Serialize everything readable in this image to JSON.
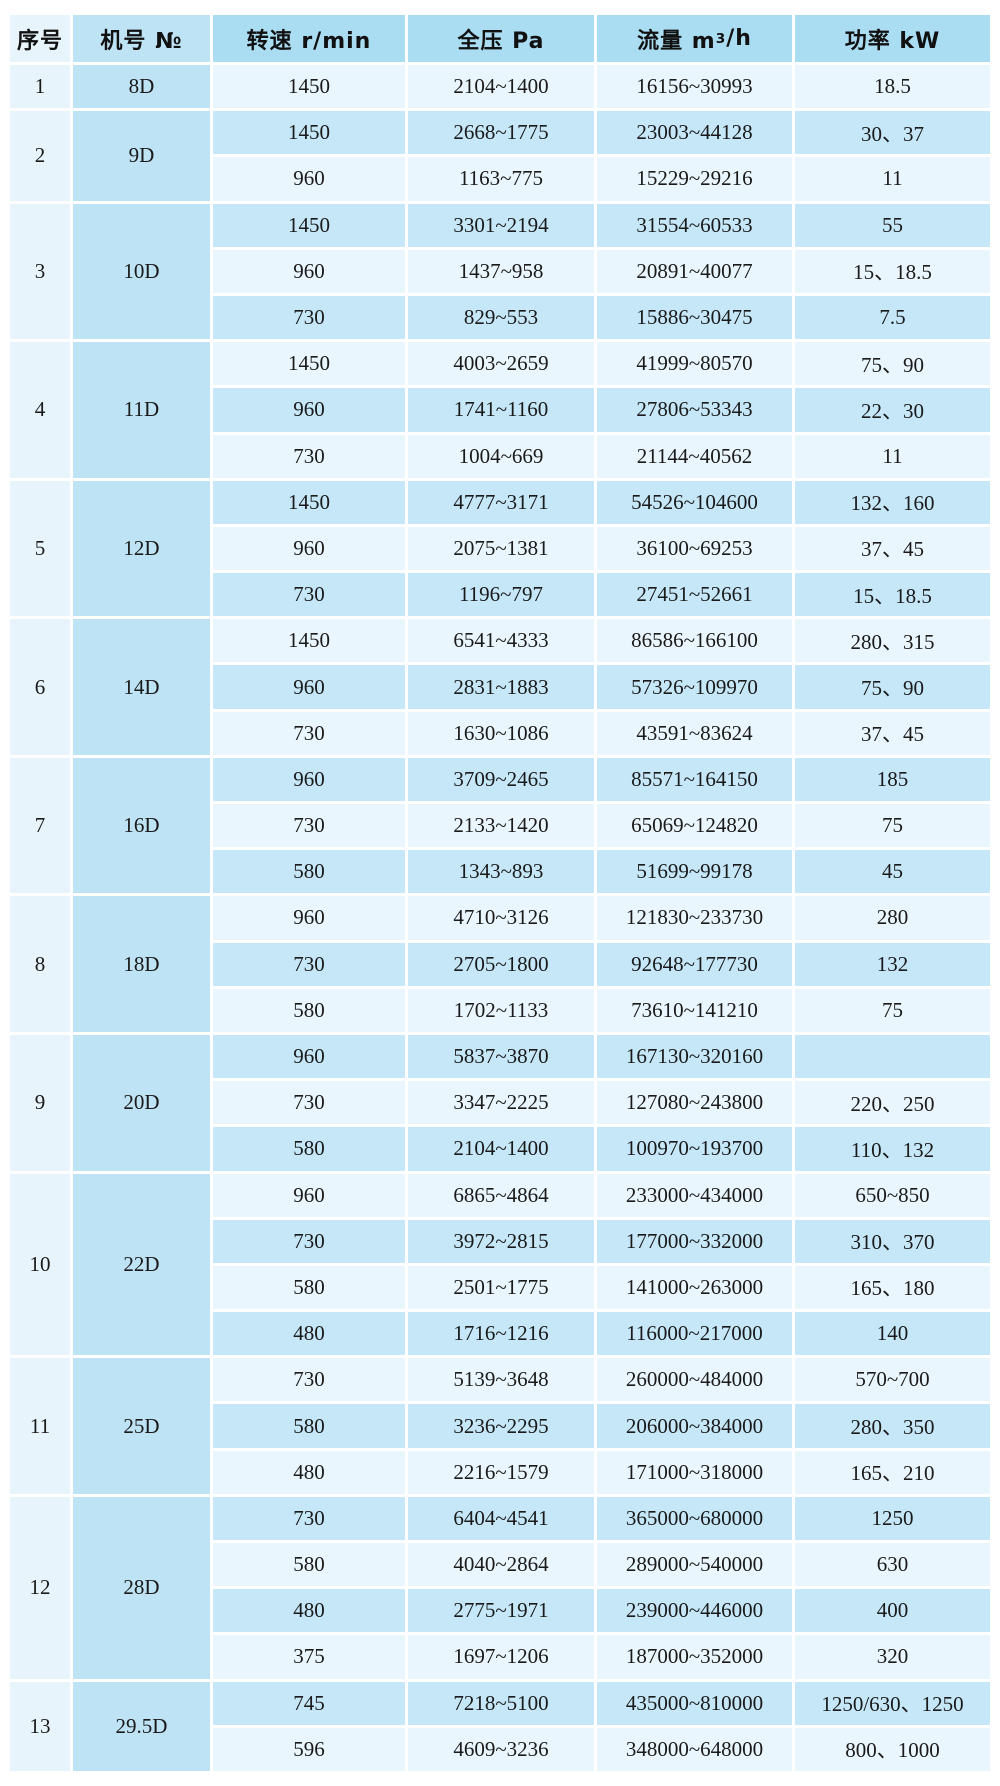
{
  "chart_data": {
    "type": "table",
    "title": "",
    "columns": [
      "序号",
      "机号 №",
      "转速 r/min",
      "全压 Pa",
      "流量 m³/h",
      "功率 kW"
    ],
    "column_keys": [
      "index",
      "model",
      "speed",
      "pressure",
      "flow",
      "power"
    ],
    "groups": [
      {
        "index": "1",
        "model": "8D",
        "rows": [
          {
            "speed": "1450",
            "pressure": "2104~1400",
            "flow": "16156~30993",
            "power": "18.5"
          }
        ]
      },
      {
        "index": "2",
        "model": "9D",
        "rows": [
          {
            "speed": "1450",
            "pressure": "2668~1775",
            "flow": "23003~44128",
            "power": "30、37"
          },
          {
            "speed": "960",
            "pressure": "1163~775",
            "flow": "15229~29216",
            "power": "11"
          }
        ]
      },
      {
        "index": "3",
        "model": "10D",
        "rows": [
          {
            "speed": "1450",
            "pressure": "3301~2194",
            "flow": "31554~60533",
            "power": "55"
          },
          {
            "speed": "960",
            "pressure": "1437~958",
            "flow": "20891~40077",
            "power": "15、18.5"
          },
          {
            "speed": "730",
            "pressure": "829~553",
            "flow": "15886~30475",
            "power": "7.5"
          }
        ]
      },
      {
        "index": "4",
        "model": "11D",
        "rows": [
          {
            "speed": "1450",
            "pressure": "4003~2659",
            "flow": "41999~80570",
            "power": "75、90"
          },
          {
            "speed": "960",
            "pressure": "1741~1160",
            "flow": "27806~53343",
            "power": "22、30"
          },
          {
            "speed": "730",
            "pressure": "1004~669",
            "flow": "21144~40562",
            "power": "11"
          }
        ]
      },
      {
        "index": "5",
        "model": "12D",
        "rows": [
          {
            "speed": "1450",
            "pressure": "4777~3171",
            "flow": "54526~104600",
            "power": "132、160"
          },
          {
            "speed": "960",
            "pressure": "2075~1381",
            "flow": "36100~69253",
            "power": "37、45"
          },
          {
            "speed": "730",
            "pressure": "1196~797",
            "flow": "27451~52661",
            "power": "15、18.5"
          }
        ]
      },
      {
        "index": "6",
        "model": "14D",
        "rows": [
          {
            "speed": "1450",
            "pressure": "6541~4333",
            "flow": "86586~166100",
            "power": "280、315"
          },
          {
            "speed": "960",
            "pressure": "2831~1883",
            "flow": "57326~109970",
            "power": "75、90"
          },
          {
            "speed": "730",
            "pressure": "1630~1086",
            "flow": "43591~83624",
            "power": "37、45"
          }
        ]
      },
      {
        "index": "7",
        "model": "16D",
        "rows": [
          {
            "speed": "960",
            "pressure": "3709~2465",
            "flow": "85571~164150",
            "power": "185"
          },
          {
            "speed": "730",
            "pressure": "2133~1420",
            "flow": "65069~124820",
            "power": "75"
          },
          {
            "speed": "580",
            "pressure": "1343~893",
            "flow": "51699~99178",
            "power": "45"
          }
        ]
      },
      {
        "index": "8",
        "model": "18D",
        "rows": [
          {
            "speed": "960",
            "pressure": "4710~3126",
            "flow": "121830~233730",
            "power": "280"
          },
          {
            "speed": "730",
            "pressure": "2705~1800",
            "flow": "92648~177730",
            "power": "132"
          },
          {
            "speed": "580",
            "pressure": "1702~1133",
            "flow": "73610~141210",
            "power": "75"
          }
        ]
      },
      {
        "index": "9",
        "model": "20D",
        "rows": [
          {
            "speed": "960",
            "pressure": "5837~3870",
            "flow": "167130~320160",
            "power": ""
          },
          {
            "speed": "730",
            "pressure": "3347~2225",
            "flow": "127080~243800",
            "power": "220、250"
          },
          {
            "speed": "580",
            "pressure": "2104~1400",
            "flow": "100970~193700",
            "power": "110、132"
          }
        ]
      },
      {
        "index": "10",
        "model": "22D",
        "rows": [
          {
            "speed": "960",
            "pressure": "6865~4864",
            "flow": "233000~434000",
            "power": "650~850"
          },
          {
            "speed": "730",
            "pressure": "3972~2815",
            "flow": "177000~332000",
            "power": "310、370"
          },
          {
            "speed": "580",
            "pressure": "2501~1775",
            "flow": "141000~263000",
            "power": "165、180"
          },
          {
            "speed": "480",
            "pressure": "1716~1216",
            "flow": "116000~217000",
            "power": "140"
          }
        ]
      },
      {
        "index": "11",
        "model": "25D",
        "rows": [
          {
            "speed": "730",
            "pressure": "5139~3648",
            "flow": "260000~484000",
            "power": "570~700"
          },
          {
            "speed": "580",
            "pressure": "3236~2295",
            "flow": "206000~384000",
            "power": "280、350"
          },
          {
            "speed": "480",
            "pressure": "2216~1579",
            "flow": "171000~318000",
            "power": "165、210"
          }
        ]
      },
      {
        "index": "12",
        "model": "28D",
        "rows": [
          {
            "speed": "730",
            "pressure": "6404~4541",
            "flow": "365000~680000",
            "power": "1250"
          },
          {
            "speed": "580",
            "pressure": "4040~2864",
            "flow": "289000~540000",
            "power": "630"
          },
          {
            "speed": "480",
            "pressure": "2775~1971",
            "flow": "239000~446000",
            "power": "400"
          },
          {
            "speed": "375",
            "pressure": "1697~1206",
            "flow": "187000~352000",
            "power": "320"
          }
        ]
      },
      {
        "index": "13",
        "model": "29.5D",
        "rows": [
          {
            "speed": "745",
            "pressure": "7218~5100",
            "flow": "435000~810000",
            "power": "1250/630、1250"
          },
          {
            "speed": "596",
            "pressure": "4609~3236",
            "flow": "348000~648000",
            "power": "800、1000"
          }
        ]
      }
    ],
    "layout": {
      "row_shading": "alternating light/medium by global row index, starting light",
      "grid": "white 3px separators, merged index and model cells per group"
    }
  },
  "colors": {
    "header_bg": "#aadcf2",
    "row_light": "#eaf6fd",
    "row_medium": "#c5e7f8",
    "index_col_bg": "#e8f4fb",
    "model_col_bg": "#bee3f5",
    "grid": "#ffffff",
    "text": "#1a1a1a"
  }
}
